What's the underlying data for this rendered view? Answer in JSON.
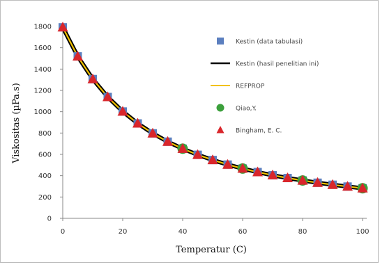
{
  "chart_data": {
    "type": "scatter",
    "title": "",
    "xlabel": "Temperatur (C)",
    "ylabel": "Viskositas (µPa.s)",
    "xlim": [
      0,
      100
    ],
    "ylim": [
      0,
      1800
    ],
    "x_ticks": [
      0,
      20,
      40,
      60,
      80,
      100
    ],
    "y_ticks": [
      0,
      200,
      400,
      600,
      800,
      1000,
      1200,
      1400,
      1600,
      1800
    ],
    "grid": false,
    "legend_position": "right",
    "series": [
      {
        "name": "Kestin (data tabulasi)",
        "marker": "square",
        "color": "#5B7FBF",
        "x": [
          0,
          5,
          10,
          15,
          20,
          25,
          30,
          35,
          40,
          45,
          50,
          55,
          60,
          65,
          70,
          75,
          80,
          85,
          90,
          95,
          100
        ],
        "y": [
          1792,
          1519,
          1306,
          1138,
          1002,
          890,
          797,
          719,
          653,
          596,
          547,
          504,
          467,
          434,
          404,
          378,
          355,
          334,
          315,
          298,
          282
        ]
      },
      {
        "name": "Kestin (hasil penelitian ini)",
        "marker": "line",
        "color": "#000000",
        "x": [
          0,
          5,
          10,
          15,
          20,
          25,
          30,
          35,
          40,
          45,
          50,
          55,
          60,
          65,
          70,
          75,
          80,
          85,
          90,
          95,
          100
        ],
        "y": [
          1792,
          1519,
          1306,
          1138,
          1002,
          890,
          797,
          719,
          653,
          596,
          547,
          504,
          467,
          434,
          404,
          378,
          355,
          334,
          315,
          298,
          282
        ]
      },
      {
        "name": "REFPROP",
        "marker": "line",
        "color": "#F2C200",
        "x": [
          0,
          5,
          10,
          15,
          20,
          25,
          30,
          35,
          40,
          45,
          50,
          55,
          60,
          65,
          70,
          75,
          80,
          85,
          90,
          95,
          100
        ],
        "y": [
          1792,
          1519,
          1306,
          1138,
          1002,
          890,
          797,
          719,
          653,
          596,
          547,
          504,
          467,
          434,
          404,
          378,
          355,
          334,
          315,
          298,
          282
        ]
      },
      {
        "name": "Qiao,Y.",
        "marker": "circle",
        "color": "#3CA03C",
        "x": [
          40,
          60,
          80,
          100
        ],
        "y": [
          653,
          467,
          355,
          282
        ]
      },
      {
        "name": "Bingham, E. C.",
        "marker": "triangle",
        "color": "#D9262B",
        "x": [
          0,
          5,
          10,
          15,
          20,
          25,
          30,
          35,
          40,
          45,
          50,
          55,
          60,
          65,
          70,
          75,
          80,
          85,
          90,
          95,
          100
        ],
        "y": [
          1792,
          1519,
          1306,
          1138,
          1002,
          890,
          797,
          719,
          653,
          596,
          547,
          504,
          467,
          434,
          404,
          378,
          355,
          334,
          315,
          298,
          282
        ]
      }
    ]
  }
}
